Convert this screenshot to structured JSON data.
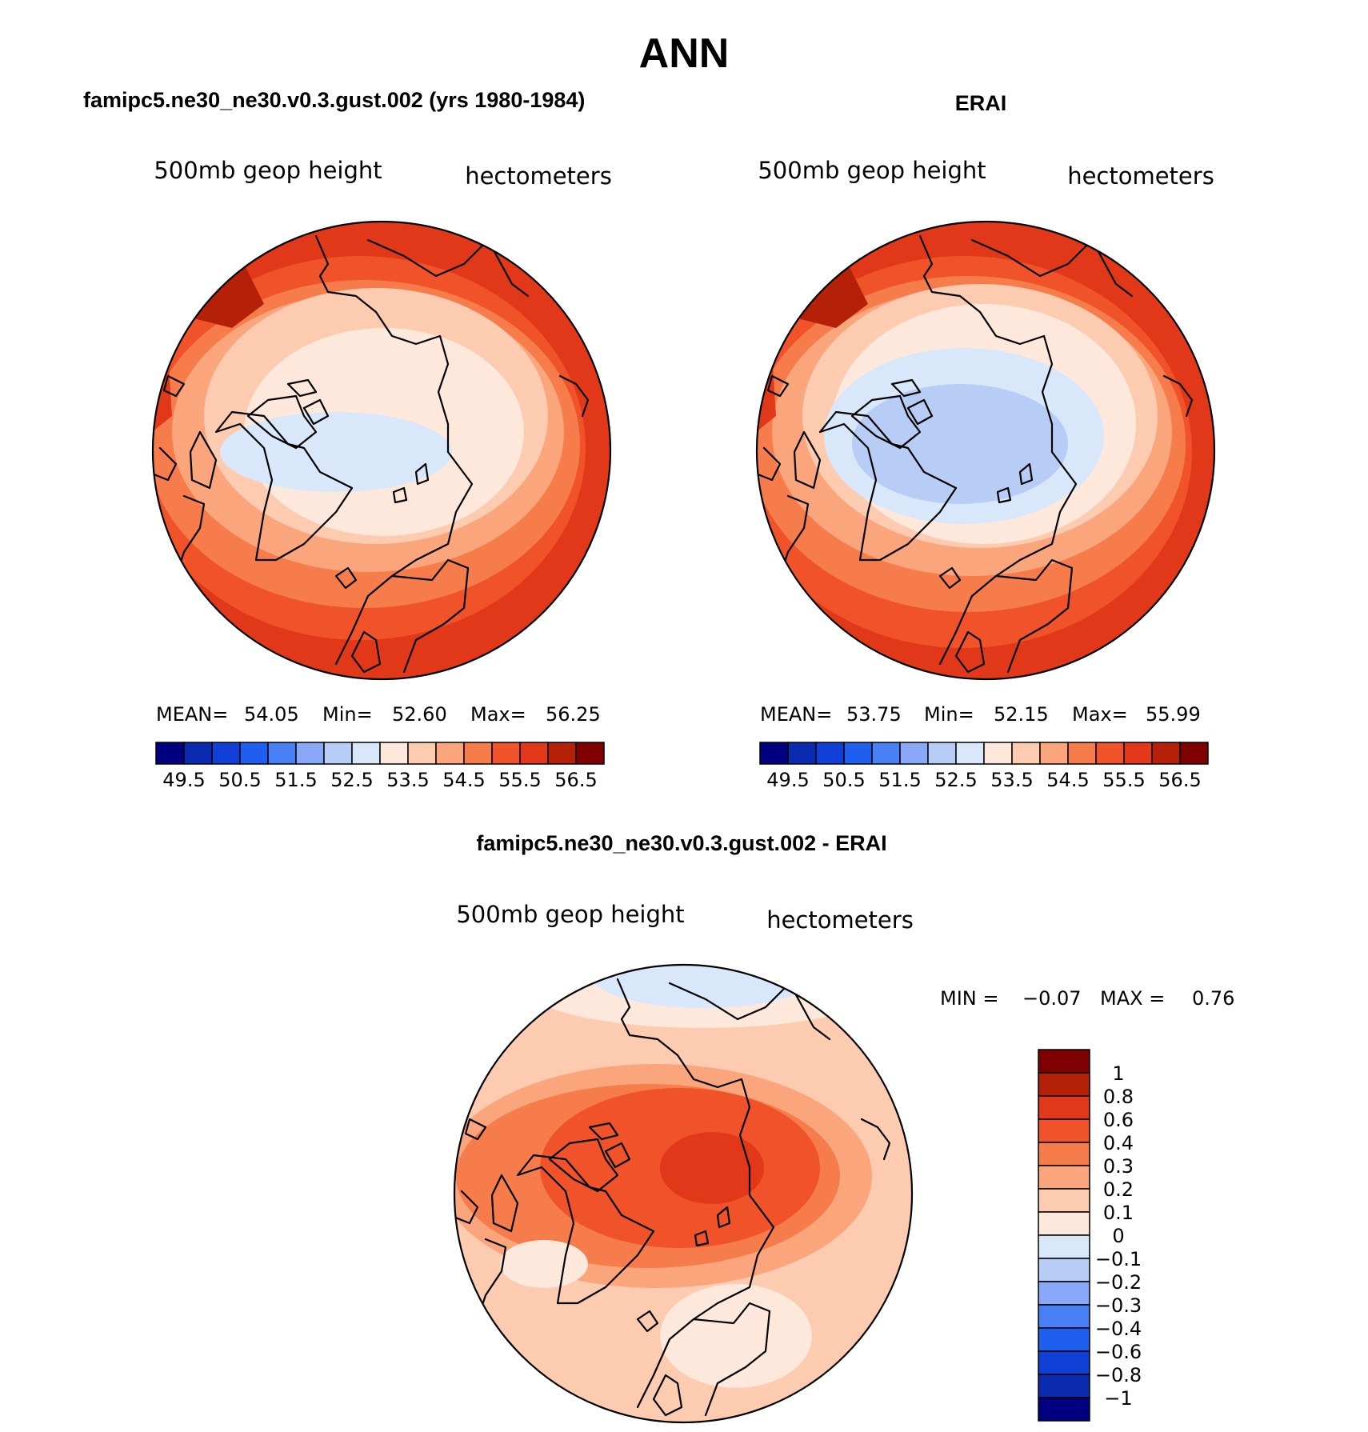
{
  "figure": {
    "title": "ANN"
  },
  "panels": [
    {
      "header": "famipc5.ne30_ne30.v0.3.gust.002 (yrs 1980-1984)",
      "field_label": "500mb geop height",
      "units_label": "hectometers",
      "stats": {
        "mean_label": "MEAN=",
        "mean": "54.05",
        "min_label": "Min=",
        "min": "52.60",
        "max_label": "Max=",
        "max": "56.25"
      }
    },
    {
      "header": "ERAI",
      "field_label": "500mb geop height",
      "units_label": "hectometers",
      "stats": {
        "mean_label": "MEAN=",
        "mean": "53.75",
        "min_label": "Min=",
        "min": "52.15",
        "max_label": "Max=",
        "max": "55.99"
      }
    },
    {
      "header": "famipc5.ne30_ne30.v0.3.gust.002 - ERAI",
      "field_label": "500mb geop height",
      "units_label": "hectometers",
      "stats": {
        "min_label": "MIN =",
        "min": "−0.07",
        "max_label": "MAX =",
        "max": "0.76"
      }
    }
  ],
  "chart_data": [
    {
      "type": "heatmap",
      "title": "famipc5.ne30_ne30.v0.3.gust.002 (yrs 1980-1984)",
      "field": "500mb geop height",
      "units": "hectometers",
      "projection": "polar stereographic (North Pole)",
      "stats": {
        "mean": 54.05,
        "min": 52.6,
        "max": 56.25
      },
      "contour_levels": [
        49.5,
        50.0,
        50.5,
        51.0,
        51.5,
        52.0,
        52.5,
        53.0,
        53.5,
        54.0,
        54.5,
        55.0,
        55.5,
        56.0,
        56.5
      ],
      "colorbar_labels": [
        "49.5",
        "50.5",
        "51.5",
        "52.5",
        "53.5",
        "54.5",
        "55.5",
        "56.5"
      ],
      "colorbar_orientation": "horizontal",
      "colors": [
        "#000080",
        "#0a2bb0",
        "#0f3fd6",
        "#1f5ff0",
        "#4a80f5",
        "#8aa8f8",
        "#b8cdf5",
        "#d8e8fa",
        "#fde8db",
        "#fccbb0",
        "#fba57c",
        "#f67d4b",
        "#f0532a",
        "#e2381a",
        "#b52008",
        "#7e0000"
      ]
    },
    {
      "type": "heatmap",
      "title": "ERAI",
      "field": "500mb geop height",
      "units": "hectometers",
      "projection": "polar stereographic (North Pole)",
      "stats": {
        "mean": 53.75,
        "min": 52.15,
        "max": 55.99
      },
      "contour_levels": [
        49.5,
        50.0,
        50.5,
        51.0,
        51.5,
        52.0,
        52.5,
        53.0,
        53.5,
        54.0,
        54.5,
        55.0,
        55.5,
        56.0,
        56.5
      ],
      "colorbar_labels": [
        "49.5",
        "50.5",
        "51.5",
        "52.5",
        "53.5",
        "54.5",
        "55.5",
        "56.5"
      ],
      "colorbar_orientation": "horizontal",
      "colors": [
        "#000080",
        "#0a2bb0",
        "#0f3fd6",
        "#1f5ff0",
        "#4a80f5",
        "#8aa8f8",
        "#b8cdf5",
        "#d8e8fa",
        "#fde8db",
        "#fccbb0",
        "#fba57c",
        "#f67d4b",
        "#f0532a",
        "#e2381a",
        "#b52008",
        "#7e0000"
      ]
    },
    {
      "type": "heatmap",
      "title": "famipc5.ne30_ne30.v0.3.gust.002 - ERAI",
      "field": "500mb geop height",
      "units": "hectometers",
      "projection": "polar stereographic (North Pole)",
      "stats": {
        "min": -0.07,
        "max": 0.76
      },
      "contour_levels": [
        -1,
        -0.8,
        -0.6,
        -0.4,
        -0.3,
        -0.2,
        -0.1,
        0,
        0.1,
        0.2,
        0.3,
        0.4,
        0.6,
        0.8,
        1
      ],
      "colorbar_labels": [
        "1",
        "0.8",
        "0.6",
        "0.4",
        "0.3",
        "0.2",
        "0.1",
        "0",
        "−0.1",
        "−0.2",
        "−0.3",
        "−0.4",
        "−0.6",
        "−0.8",
        "−1"
      ],
      "colorbar_orientation": "vertical",
      "colors": [
        "#7e0000",
        "#b52008",
        "#e2381a",
        "#f0532a",
        "#f67d4b",
        "#fba57c",
        "#fccbb0",
        "#fde8db",
        "#d8e8fa",
        "#b8cdf5",
        "#8aa8f8",
        "#4a80f5",
        "#1f5ff0",
        "#0f3fd6",
        "#0a2bb0",
        "#000080"
      ]
    }
  ]
}
